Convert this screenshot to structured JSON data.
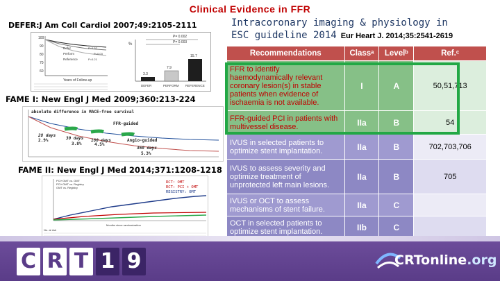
{
  "slide": {
    "title": "Clinical Evidence in FFR"
  },
  "left": {
    "defer_ref": "DEFER:J Am Coll Cardiol 2007;49:2105-2111",
    "fame1_ref": "FAME I: New Engl J Med 2009;360:213-224",
    "fame2_ref": "FAME II: New Engl J Med 2014;371:1208-1218",
    "defer_panel": {
      "p1": "P= 0.002",
      "p2": "P= 0.003",
      "bars": [
        "3.3",
        "7.9",
        "15.7"
      ],
      "bar_labels": [
        "DEFER",
        "PERFORM",
        "REFERENCE"
      ],
      "y_ticks": [
        "100",
        "90",
        "80",
        "70",
        "60"
      ],
      "curve_labels": [
        "Defer",
        "Perform",
        "Reference"
      ],
      "p_small": [
        "P=0.52",
        "P=0.03",
        "P=0.21"
      ],
      "xlabel": "Years of Follow-up",
      "pct": "%"
    },
    "fame1_panel": {
      "note": "absolute difference in MACE-free survival",
      "line_label": "FFR-guided",
      "d1": "28 days",
      "d1v": "2.9%",
      "d2": "30 days",
      "d2v": "3.8%",
      "d3": "180 days",
      "d3v": "4.5%",
      "d4": "Angio-guided",
      "d5": "360 days",
      "d5v": "5.3%"
    },
    "fame2_panel": {
      "legend": [
        "RCT: OMT",
        "RCT: PCI + OMT",
        "REGISTRY: OMT"
      ],
      "legend_colors": [
        "#c00000",
        "#c00000",
        "#1f3c8a"
      ],
      "hr1": "PCI+OMT vs. OMT",
      "hr2": "PCI+OMT vs. Registry",
      "hr3": "OMT vs. Registry",
      "xlabel": "Months since randomization",
      "at_risk": "No. at risk"
    }
  },
  "right": {
    "heading_line1": "Intracoronary imaging & physiology in",
    "heading_line2": "ESC guideline 2014",
    "citation": "Eur Heart J. 2014;35:2541-2619",
    "table": {
      "headers": [
        "Recommendations",
        "Classᵃ",
        "Levelᵇ",
        "Ref.ᶜ"
      ],
      "rows": [
        {
          "text": "FFR to identify haemodynamically relevant coronary lesion(s) in stable patients when evidence of ischaemia is not available.",
          "cls": "I",
          "lvl": "A",
          "ref": "50,51,713"
        },
        {
          "text": "FFR-guided PCI in patients with multivessel disease.",
          "cls": "IIa",
          "lvl": "B",
          "ref": "54"
        },
        {
          "text": "IVUS in selected patients to optimize stent implantation.",
          "cls": "IIa",
          "lvl": "B",
          "ref": "702,703,706"
        },
        {
          "text": "IVUS to assess severity and optimize treatment of unprotected left main lesions.",
          "cls": "IIa",
          "lvl": "B",
          "ref": "705"
        },
        {
          "text": "IVUS or OCT to assess mechanisms of stent failure.",
          "cls": "IIa",
          "lvl": "C",
          "ref": ""
        },
        {
          "text": "OCT in selected patients to optimize stent implantation.",
          "cls": "IIb",
          "lvl": "C",
          "ref": ""
        }
      ]
    }
  },
  "banner": {
    "logo_chars": [
      "C",
      "R",
      "T",
      "1",
      "9"
    ],
    "online_main": "CRTonline",
    "online_tld": ".org"
  },
  "colors": {
    "title": "#c00000",
    "banner": "#5a3c88",
    "highlight": "#22a845",
    "table_header": "#c0504d"
  }
}
